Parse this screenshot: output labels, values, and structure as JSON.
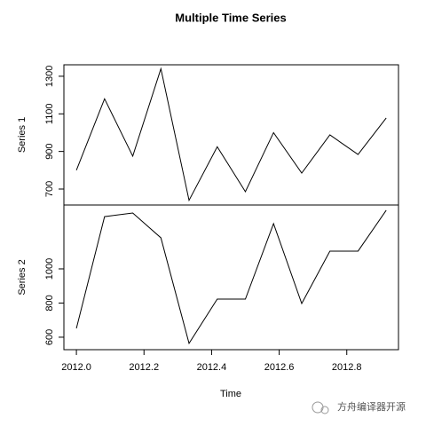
{
  "chart_data": {
    "type": "line",
    "title": "Multiple Time Series",
    "xlabel": "Time",
    "x": [
      2012,
      2012.0833,
      2012.1667,
      2012.25,
      2012.3333,
      2012.4167,
      2012.5,
      2012.5833,
      2012.6667,
      2012.75,
      2012.8333,
      2012.9167
    ],
    "xlim": [
      2011.963,
      2012.953
    ],
    "xticks": [
      {
        "value": 2012,
        "label": "2012.0"
      },
      2012.2,
      2012.4,
      2012.6,
      2012.8
    ],
    "series": [
      {
        "name": "Series 1",
        "color": "#000000",
        "values": [
          800,
          1180,
          875,
          1340,
          640,
          925,
          686,
          1000,
          785,
          988,
          884,
          1078
        ],
        "ylim": [
          615,
          1361
        ],
        "yticks": [
          700,
          900,
          1100,
          1300
        ]
      },
      {
        "name": "Series 2",
        "color": "#000000",
        "values": [
          652,
          1306,
          1327,
          1182,
          564,
          823,
          823,
          1265,
          797,
          1104,
          1104,
          1343
        ],
        "ylim": [
          527,
          1374
        ],
        "yticks": [
          600,
          800,
          1000
        ]
      }
    ]
  },
  "watermark": "方舟编译器开源"
}
